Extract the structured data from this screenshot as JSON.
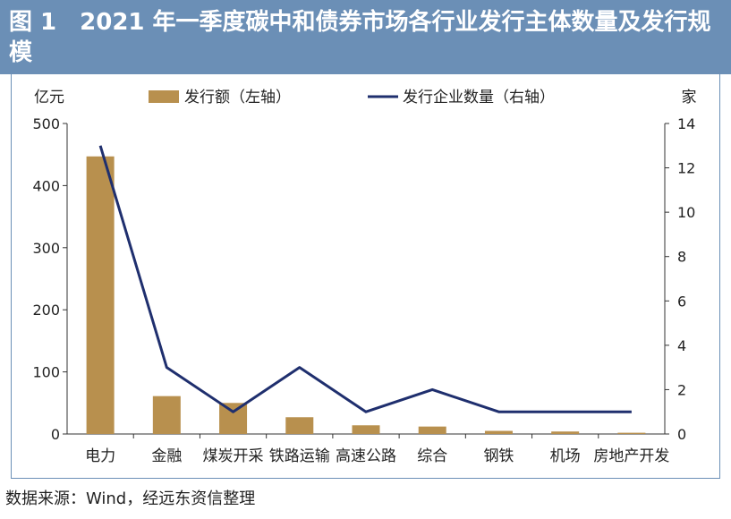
{
  "title": "图 1　2021 年一季度碳中和债券市场各行业发行主体数量及发行规模",
  "source": "数据来源：Wind，经远东资信整理",
  "colors": {
    "bar": "#b8904e",
    "line": "#1f2f6e",
    "header": "#6b8fb6"
  },
  "chart_data": {
    "type": "bar",
    "categories": [
      "电力",
      "金融",
      "煤炭开采",
      "铁路运输",
      "高速公路",
      "综合",
      "钢铁",
      "机场",
      "房地产开发"
    ],
    "series": [
      {
        "name": "发行额（左轴）",
        "type": "bar",
        "axis": "left",
        "values": [
          447,
          61,
          50,
          27,
          14,
          12,
          5,
          4,
          2
        ]
      },
      {
        "name": "发行企业数量（右轴）",
        "type": "line",
        "axis": "right",
        "values": [
          13,
          3,
          1,
          3,
          1,
          2,
          1,
          1,
          1
        ]
      }
    ],
    "y_left": {
      "label": "亿元",
      "ylim": [
        0,
        500
      ],
      "ticks": [
        0,
        100,
        200,
        300,
        400,
        500
      ]
    },
    "y_right": {
      "label": "家",
      "ylim": [
        0,
        14
      ],
      "ticks": [
        0,
        2,
        4,
        6,
        8,
        10,
        12,
        14
      ]
    },
    "legend": {
      "position": "top"
    },
    "grid": false
  }
}
